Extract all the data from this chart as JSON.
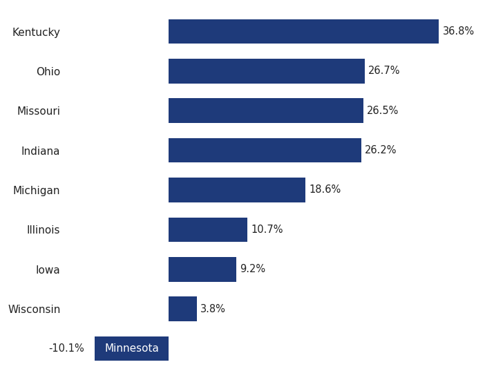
{
  "categories": [
    "Kentucky",
    "Ohio",
    "Missouri",
    "Indiana",
    "Michigan",
    "Illinois",
    "Iowa",
    "Wisconsin",
    "Minnesota"
  ],
  "values": [
    36.8,
    26.7,
    26.5,
    26.2,
    18.6,
    10.7,
    9.2,
    3.8,
    -10.1
  ],
  "bar_color": "#1e3a7a",
  "label_color": "#222222",
  "background_color": "#ffffff",
  "value_labels": [
    "36.8%",
    "26.7%",
    "26.5%",
    "26.2%",
    "18.6%",
    "10.7%",
    "9.2%",
    "3.8%",
    "-10.1%"
  ],
  "xlim": [
    -14,
    42
  ],
  "bar_height": 0.62,
  "fontsize_labels": 11,
  "fontsize_values": 10.5,
  "mn_label_inside": "Minnesota",
  "mn_value_outside": "-10.1%"
}
